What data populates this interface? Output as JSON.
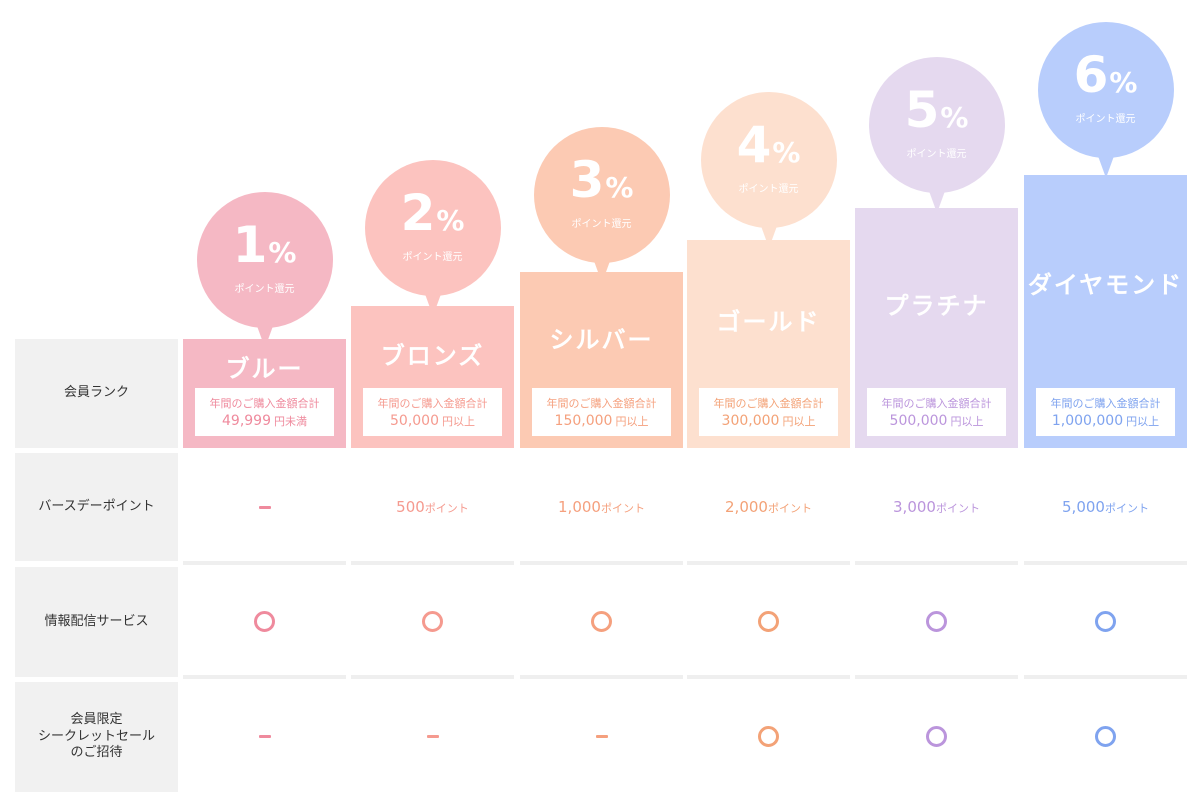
{
  "row_labels": {
    "rank": "会員ランク",
    "birthday": "バースデーポイント",
    "info": "情報配信サービス",
    "sale": "会員限定\nシークレットセール\nのご招待"
  },
  "tiers": [
    {
      "name": "ブルー",
      "percent": "1",
      "percent_symbol": "%",
      "bubble_sub": "ポイント還元",
      "purchase_label": "年間のご購入金額合計",
      "purchase_value": "49,999",
      "purchase_unit": "円未満",
      "birthday_value": "",
      "birthday_unit": "",
      "info": "circle",
      "sale": "dash",
      "color": "#f5b8c4",
      "accent": "#ef8a9d"
    },
    {
      "name": "ブロンズ",
      "percent": "2",
      "percent_symbol": "%",
      "bubble_sub": "ポイント還元",
      "purchase_label": "年間のご購入金額合計",
      "purchase_value": "50,000",
      "purchase_unit": "円以上",
      "birthday_value": "500",
      "birthday_unit": "ポイント",
      "info": "circle",
      "sale": "dash",
      "color": "#fcc3bf",
      "accent": "#f59a8f"
    },
    {
      "name": "シルバー",
      "percent": "3",
      "percent_symbol": "%",
      "bubble_sub": "ポイント還元",
      "purchase_label": "年間のご購入金額合計",
      "purchase_value": "150,000",
      "purchase_unit": "円以上",
      "birthday_value": "1,000",
      "birthday_unit": "ポイント",
      "info": "circle",
      "sale": "dash",
      "color": "#fccab3",
      "accent": "#f5a07e"
    },
    {
      "name": "ゴールド",
      "percent": "4",
      "percent_symbol": "%",
      "bubble_sub": "ポイント還元",
      "purchase_label": "年間のご購入金額合計",
      "purchase_value": "300,000",
      "purchase_unit": "円以上",
      "birthday_value": "2,000",
      "birthday_unit": "ポイント",
      "info": "circle",
      "sale": "circle",
      "color": "#fde0cf",
      "accent": "#f3a277"
    },
    {
      "name": "プラチナ",
      "percent": "5",
      "percent_symbol": "%",
      "bubble_sub": "ポイント還元",
      "purchase_label": "年間のご購入金額合計",
      "purchase_value": "500,000",
      "purchase_unit": "円以上",
      "birthday_value": "3,000",
      "birthday_unit": "ポイント",
      "info": "circle",
      "sale": "circle",
      "color": "#e5d9ef",
      "accent": "#bb95dc"
    },
    {
      "name": "ダイヤモンド",
      "percent": "6",
      "percent_symbol": "%",
      "bubble_sub": "ポイント還元",
      "purchase_label": "年間のご購入金額合計",
      "purchase_value": "1,000,000",
      "purchase_unit": "円以上",
      "birthday_value": "5,000",
      "birthday_unit": "ポイント",
      "info": "circle",
      "sale": "circle",
      "color": "#b8cdfc",
      "accent": "#7fa3ef"
    }
  ]
}
